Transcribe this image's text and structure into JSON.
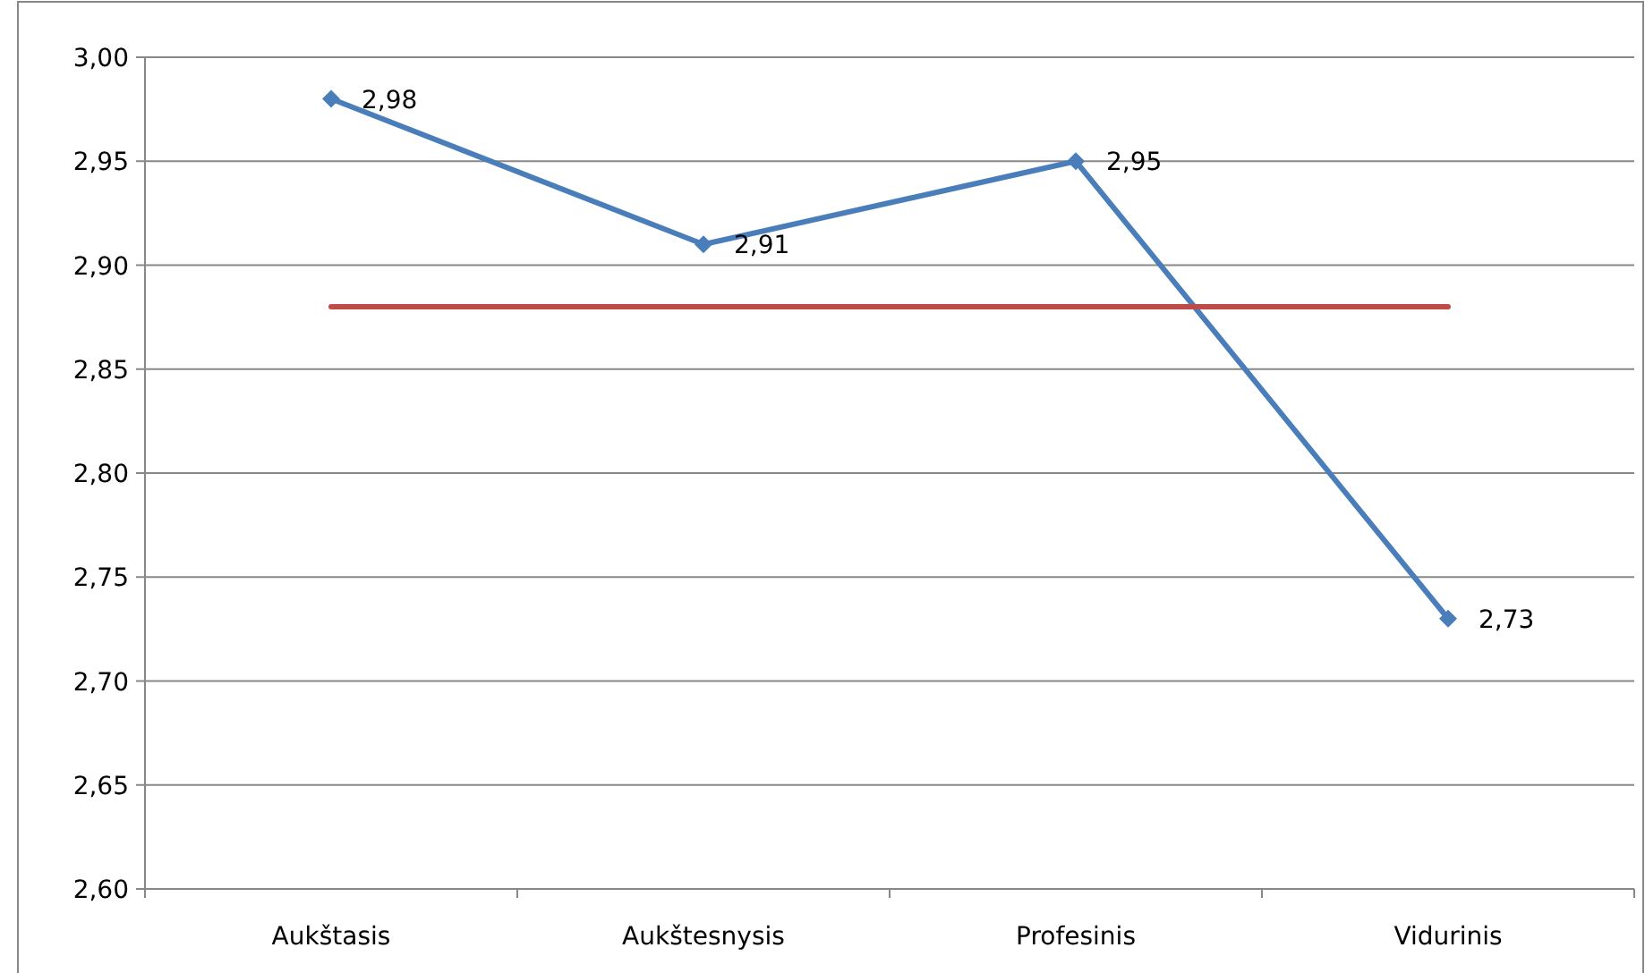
{
  "chart_data": {
    "type": "line",
    "categories": [
      "Aukštasis",
      "Aukštesnysis",
      "Profesinis",
      "Vidurinis"
    ],
    "series": [
      {
        "color": "#4a7ebb",
        "values": [
          2.98,
          2.91,
          2.95,
          2.73
        ],
        "marker": "diamond",
        "value_labels": [
          "2,98",
          "2,91",
          "2,95",
          "2,73"
        ]
      },
      {
        "color": "#be4b48",
        "values": [
          2.88,
          2.88,
          2.88,
          2.88
        ],
        "marker": "none"
      }
    ],
    "ylim": [
      2.6,
      3.0
    ],
    "yticks": [
      {
        "value": 2.6,
        "label": "2,60"
      },
      {
        "value": 2.65,
        "label": "2,65"
      },
      {
        "value": 2.7,
        "label": "2,70"
      },
      {
        "value": 2.75,
        "label": "2,75"
      },
      {
        "value": 2.8,
        "label": "2,80"
      },
      {
        "value": 2.85,
        "label": "2,85"
      },
      {
        "value": 2.9,
        "label": "2,90"
      },
      {
        "value": 2.95,
        "label": "2,95"
      },
      {
        "value": 3.0,
        "label": "3,00"
      }
    ],
    "grid": "y",
    "line_style": "solid"
  }
}
